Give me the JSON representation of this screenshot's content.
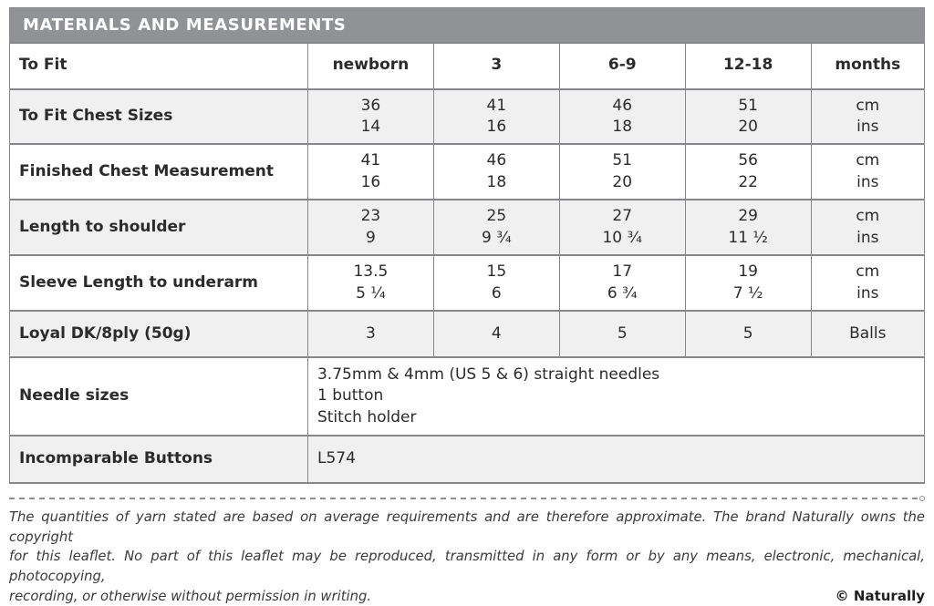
{
  "table": {
    "title": "MATERIALS AND MEASUREMENTS",
    "header": {
      "label": "To Fit",
      "cols": [
        "newborn",
        "3",
        "6-9",
        "12-18",
        "months"
      ]
    },
    "rows": [
      {
        "label": "To Fit Chest Sizes",
        "values": [
          "36\n14",
          "41\n16",
          "46\n18",
          "51\n20"
        ],
        "unit": "cm\nins"
      },
      {
        "label": "Finished Chest Measurement",
        "values": [
          "41\n16",
          "46\n18",
          "51\n20",
          "56\n22"
        ],
        "unit": "cm\nins"
      },
      {
        "label": "Length to shoulder",
        "values": [
          "23\n9",
          "25\n9 ¾",
          "27\n10 ¾",
          "29\n11 ½"
        ],
        "unit": "cm\nins"
      },
      {
        "label": "Sleeve Length to underarm",
        "values": [
          "13.5\n5 ¼",
          "15\n6",
          "17\n6 ¾",
          "19\n7 ½"
        ],
        "unit": "cm\nins"
      },
      {
        "label": "Loyal DK/8ply (50g)",
        "values": [
          "3",
          "4",
          "5",
          "5"
        ],
        "unit": "Balls"
      }
    ],
    "needle_row": {
      "label": "Needle sizes",
      "value": "3.75mm & 4mm (US 5 & 6) straight needles\n1 button\nStitch holder"
    },
    "buttons_row": {
      "label": "Incomparable Buttons",
      "value": "L574"
    }
  },
  "colors": {
    "title_bar": "#909295",
    "shaded_row": "#f0f0f1",
    "border": "#85878a"
  },
  "footer": {
    "line1": "The quantities of yarn stated are based on average requirements and are therefore approximate. The brand Naturally owns the copyright",
    "line2": "for this leaflet. No part of this leaflet may be reproduced, transmitted in any form or by any means, electronic, mechanical, photocopying,",
    "line3": "recording, or otherwise without permission in writing.",
    "copyright": "© Naturally"
  }
}
